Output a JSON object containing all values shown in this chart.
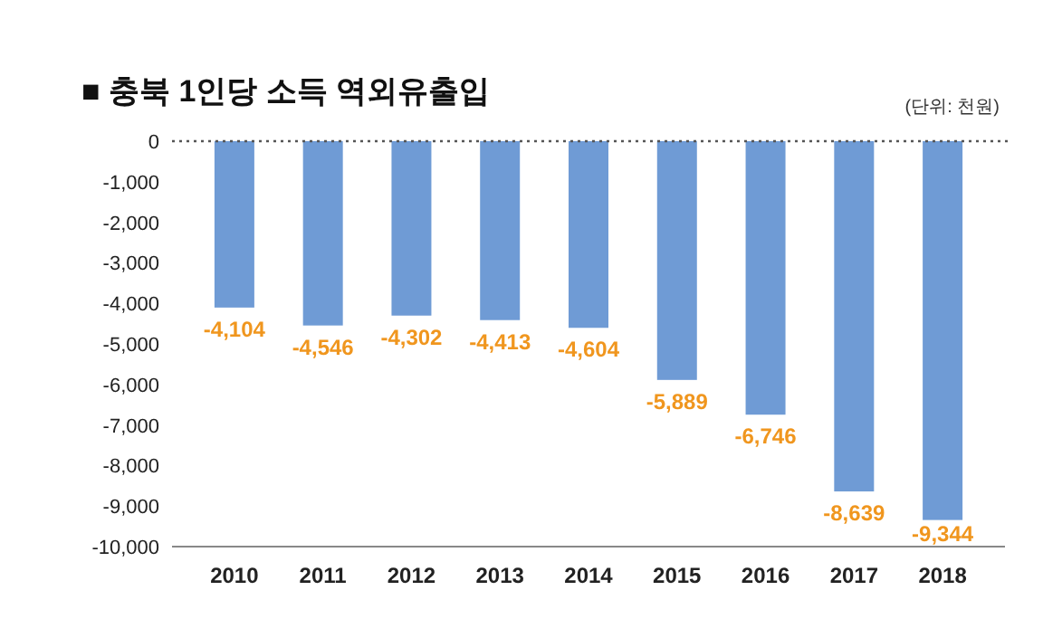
{
  "chart_data": {
    "type": "bar",
    "title": "■ 충북 1인당 소득 역외유출입",
    "annotations": [
      "(단위: 천원)"
    ],
    "categories": [
      "2010",
      "2011",
      "2012",
      "2013",
      "2014",
      "2015",
      "2016",
      "2017",
      "2018"
    ],
    "values": [
      -4104,
      -4546,
      -4302,
      -4413,
      -4604,
      -5889,
      -6746,
      -8639,
      -9344
    ],
    "value_labels": [
      "-4,104",
      "-4,546",
      "-4,302",
      "-4,413",
      "-4,604",
      "-5,889",
      "-6,746",
      "-8,639",
      "-9,344"
    ],
    "color": "#6f9bd5",
    "ylim": [
      -10000,
      0
    ],
    "yticks": [
      {
        "value": 0,
        "label": "0"
      },
      {
        "value": -1000,
        "label": "-1,000"
      },
      {
        "value": -2000,
        "label": "-2,000"
      },
      {
        "value": -3000,
        "label": "-3,000"
      },
      {
        "value": -4000,
        "label": "-4,000"
      },
      {
        "value": -5000,
        "label": "-5,000"
      },
      {
        "value": -6000,
        "label": "-6,000"
      },
      {
        "value": -7000,
        "label": "-7,000"
      },
      {
        "value": -8000,
        "label": "-8,000"
      },
      {
        "value": -9000,
        "label": "-9,000"
      },
      {
        "value": -10000,
        "label": "-10,000"
      }
    ],
    "ref_lines": [
      {
        "axis": "y",
        "value": 0,
        "line_style": "dotted",
        "color": "#555555"
      }
    ],
    "grid": false
  }
}
